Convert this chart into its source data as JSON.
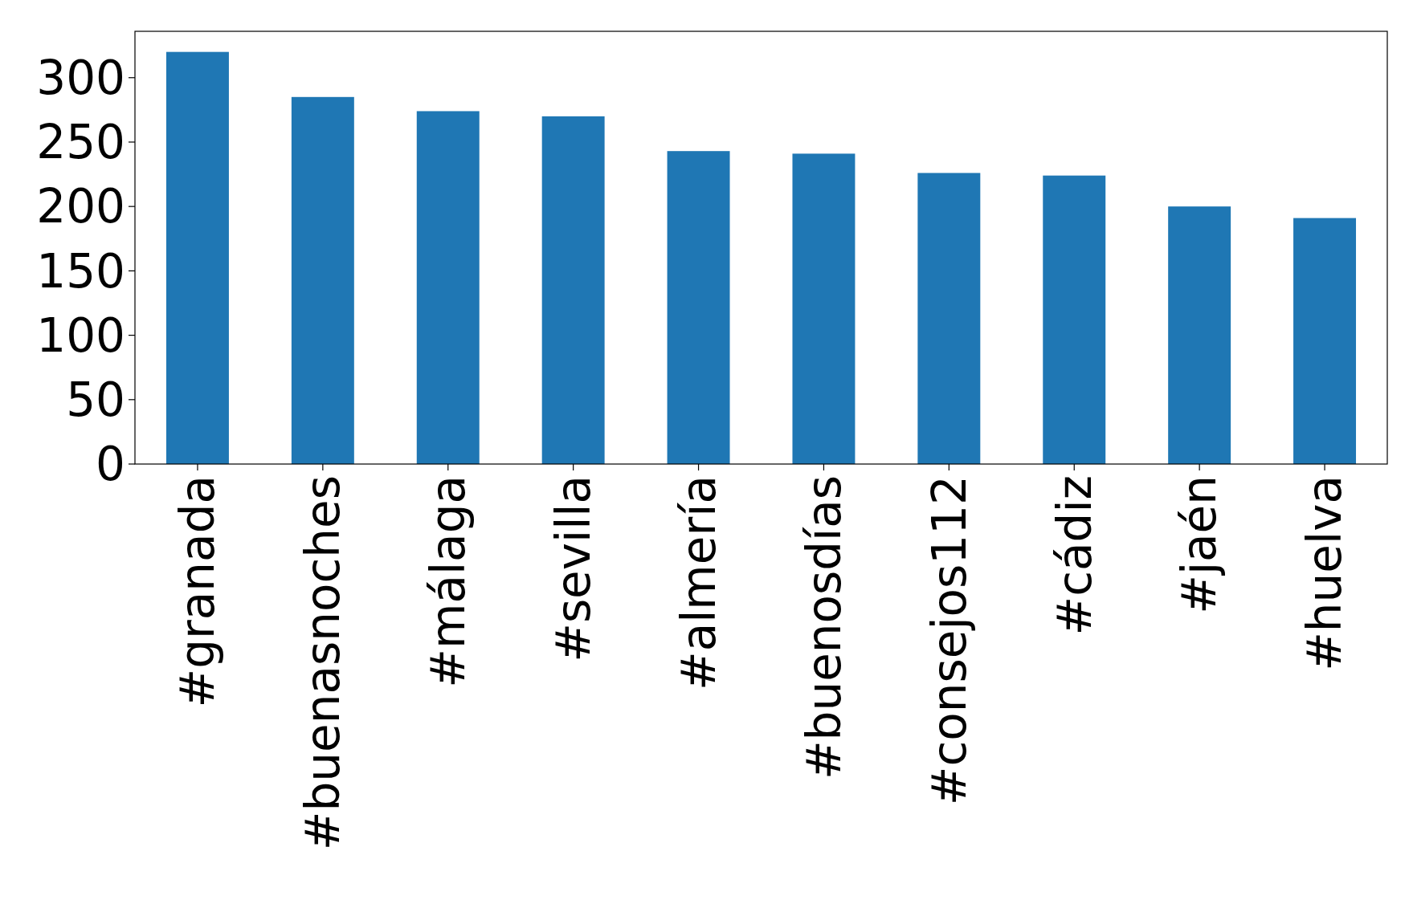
{
  "chart_data": {
    "type": "bar",
    "categories": [
      "#granada",
      "#buenasnoches",
      "#málaga",
      "#sevilla",
      "#almería",
      "#buenosdías",
      "#consejos112",
      "#cádiz",
      "#jaén",
      "#huelva"
    ],
    "values": [
      320,
      285,
      274,
      270,
      243,
      241,
      226,
      224,
      200,
      191
    ],
    "color": "#1f77b4",
    "ylim": [
      0,
      336
    ],
    "yticks": [
      0,
      50,
      100,
      150,
      200,
      250,
      300
    ]
  }
}
